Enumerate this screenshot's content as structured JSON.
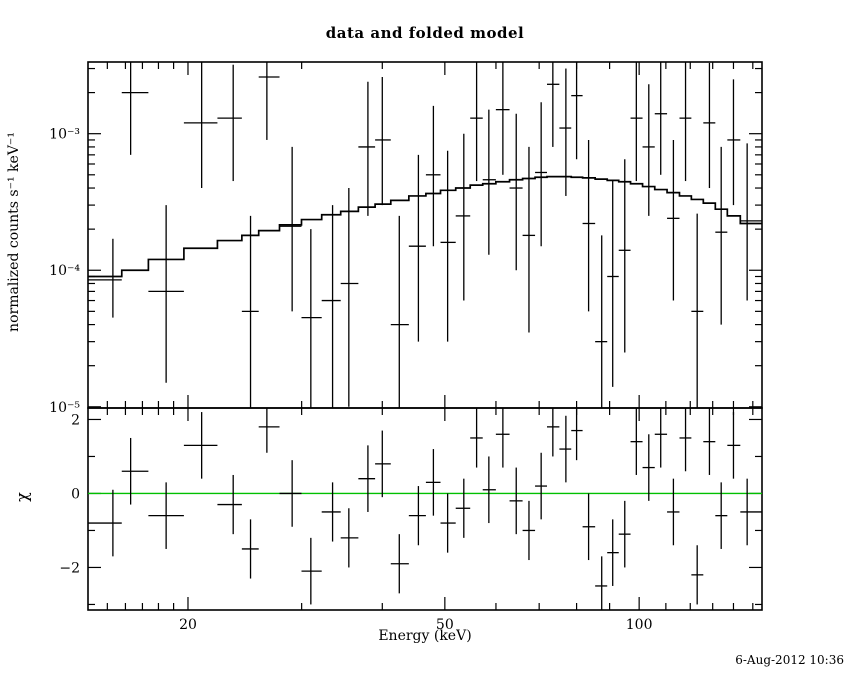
{
  "title": "data and folded model",
  "timestamp": "6-Aug-2012 10:36",
  "colors": {
    "foreground": "#000000",
    "model_line": "#000000",
    "data_points": "#000000",
    "zero_line": "#00c000",
    "background": "#ffffff"
  },
  "chart_data": {
    "type": "scatter",
    "title": "data and folded model",
    "xlabel": "Energy (keV)",
    "ylabel_top": "normalized counts s⁻¹ keV⁻¹",
    "ylabel_bottom": "χ",
    "x_scale": "log",
    "xlim": [
      14,
      155
    ],
    "xticks": [
      20,
      50,
      100
    ],
    "xtick_labels": [
      "20",
      "50",
      "100"
    ],
    "xticks_minor": [
      15,
      16,
      17,
      18,
      19,
      30,
      40,
      60,
      70,
      80,
      90,
      110,
      120,
      130,
      140,
      150
    ],
    "grid": false,
    "legend": "none",
    "top_panel": {
      "y_scale": "log",
      "ylim": [
        9.8e-06,
        0.00335
      ],
      "yticks": [
        1e-05,
        0.0001,
        0.001
      ],
      "ytick_labels": [
        "10⁻⁵",
        "10⁻⁴",
        "10⁻³"
      ]
    },
    "bottom_panel": {
      "y_scale": "linear",
      "ylim": [
        -3.15,
        2.31
      ],
      "yticks": [
        -2,
        0,
        2
      ],
      "ytick_labels": [
        "−2",
        "0",
        "2"
      ],
      "yticks_minor": [
        -3,
        -1,
        1
      ],
      "zero_line": 0
    },
    "energies": [
      15.3,
      16.3,
      18.5,
      21.0,
      23.5,
      25.0,
      26.5,
      29.0,
      31.0,
      33.5,
      35.5,
      38.0,
      40.0,
      42.5,
      45.5,
      48.0,
      50.5,
      53.5,
      56.0,
      58.5,
      61.5,
      64.5,
      67.5,
      70.5,
      73.5,
      77.0,
      80.0,
      83.5,
      87.5,
      91.0,
      95.0,
      99.0,
      103.5,
      108.0,
      113.0,
      118.0,
      123.0,
      128.5,
      134.0,
      140.0,
      147.0
    ],
    "model": [
      9e-05,
      0.0001,
      0.00012,
      0.000145,
      0.000165,
      0.00018,
      0.000195,
      0.000215,
      0.000235,
      0.000255,
      0.00027,
      0.00029,
      0.000305,
      0.000325,
      0.00035,
      0.000365,
      0.000385,
      0.0004,
      0.00042,
      0.00043,
      0.000445,
      0.00046,
      0.00047,
      0.00048,
      0.000485,
      0.000485,
      0.00048,
      0.000475,
      0.000465,
      0.000455,
      0.000445,
      0.00043,
      0.00041,
      0.00039,
      0.00037,
      0.00035,
      0.00033,
      0.00031,
      0.00028,
      0.00025,
      0.00022
    ],
    "data": [
      8.5e-05,
      0.002,
      7e-05,
      0.0012,
      0.0013,
      5e-05,
      0.0026,
      0.00021,
      4.5e-05,
      6e-05,
      8e-05,
      0.0008,
      0.0009,
      4e-05,
      0.00015,
      0.0005,
      0.00016,
      0.00025,
      0.0013,
      0.00046,
      0.0015,
      0.0004,
      0.00018,
      0.00052,
      0.0023,
      0.0011,
      0.0019,
      0.00022,
      3e-05,
      9e-05,
      0.00014,
      0.0013,
      0.0008,
      0.0014,
      0.00024,
      0.0013,
      5e-05,
      0.0012,
      0.00019,
      0.0009,
      0.00023
    ],
    "data_lo": [
      4.5e-05,
      0.0007,
      1.5e-05,
      0.0004,
      0.00045,
      8e-06,
      0.0009,
      5e-05,
      7e-06,
      8e-06,
      1e-05,
      0.00025,
      0.0003,
      5e-06,
      3e-05,
      0.00015,
      3e-05,
      6e-05,
      0.00045,
      0.00013,
      0.0005,
      0.0001,
      3.5e-05,
      0.00015,
      0.0008,
      0.00035,
      0.00065,
      5e-05,
      4e-06,
      1.4e-05,
      2.5e-05,
      0.00045,
      0.00025,
      0.0005,
      6e-05,
      0.00045,
      7e-06,
      0.0004,
      4e-05,
      0.0003,
      6e-05
    ],
    "data_hi": [
      0.00017,
      0.005,
      0.0003,
      0.0036,
      0.0032,
      0.00025,
      0.007,
      0.0008,
      0.0002,
      0.0003,
      0.0004,
      0.0024,
      0.0026,
      0.00025,
      0.0007,
      0.0016,
      0.00075,
      0.001,
      0.0036,
      0.0015,
      0.004,
      0.0014,
      0.0008,
      0.0017,
      0.006,
      0.003,
      0.005,
      0.0009,
      0.00018,
      0.00045,
      0.00065,
      0.0035,
      0.0023,
      0.0038,
      0.0009,
      0.0036,
      0.00026,
      0.0033,
      0.0008,
      0.0025,
      0.00085
    ],
    "chi": [
      -0.8,
      0.6,
      -0.6,
      1.3,
      -0.3,
      -1.5,
      1.8,
      0.0,
      -2.1,
      -0.5,
      -1.2,
      0.4,
      0.8,
      -1.9,
      -0.6,
      0.3,
      -0.8,
      -0.4,
      1.5,
      0.1,
      1.6,
      -0.2,
      -1.0,
      0.2,
      1.8,
      1.2,
      1.7,
      -0.9,
      -2.5,
      -1.6,
      -1.1,
      1.4,
      0.7,
      1.6,
      -0.5,
      1.5,
      -2.2,
      1.4,
      -0.6,
      1.3,
      -0.5
    ],
    "chi_err": [
      0.9,
      0.9,
      0.9,
      0.9,
      0.8,
      0.8,
      0.7,
      0.9,
      0.9,
      0.8,
      0.8,
      0.9,
      0.9,
      0.8,
      0.8,
      0.9,
      0.8,
      0.8,
      0.8,
      0.9,
      0.9,
      0.9,
      0.8,
      0.9,
      0.8,
      0.9,
      0.8,
      0.9,
      0.8,
      0.9,
      0.9,
      0.9,
      0.9,
      0.9,
      0.9,
      0.9,
      0.8,
      0.9,
      0.9,
      0.9,
      0.9
    ]
  }
}
